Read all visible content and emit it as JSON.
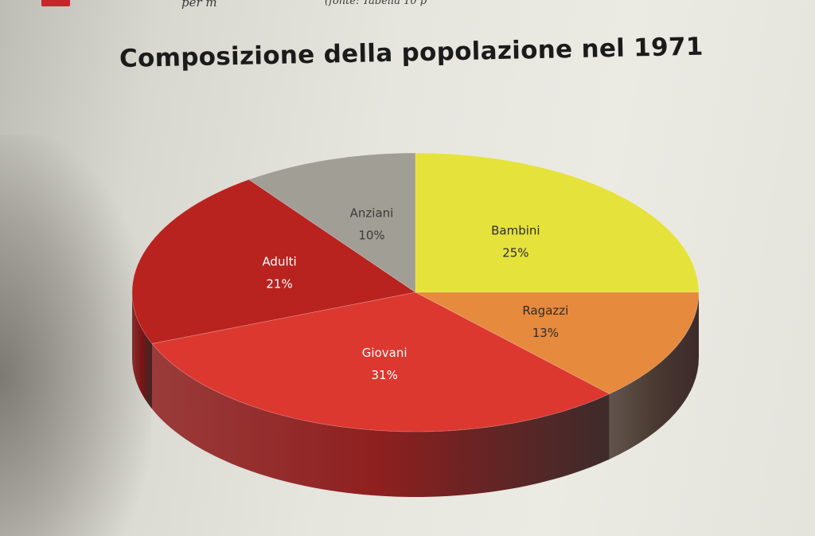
{
  "header": {
    "top_fragment_left": "per m",
    "top_fragment_right": "(fonte: Tabella 10 p"
  },
  "chart_data": {
    "type": "pie",
    "title": "Composizione della popolazione nel 1971",
    "slices": [
      {
        "label": "Bambini",
        "value": 25,
        "value_label": "25%",
        "color": "#e6e23c",
        "side_color": "#9c9a22",
        "label_color": "#2d2d2d"
      },
      {
        "label": "Ragazzi",
        "value": 13,
        "value_label": "13%",
        "color": "#e68a3e",
        "side_color": "#4a3a32",
        "label_color": "#2d2d2d"
      },
      {
        "label": "Giovani",
        "value": 31,
        "value_label": "31%",
        "color": "#dc3830",
        "side_color": "#8e1f1f",
        "label_color": "#ffffff"
      },
      {
        "label": "Adulti",
        "value": 21,
        "value_label": "21%",
        "color": "#b8221f",
        "side_color": "#7a1414",
        "label_color": "#ffffff"
      },
      {
        "label": "Anziani",
        "value": 10,
        "value_label": "10%",
        "color": "#a19e96",
        "side_color": "#6e6b64",
        "label_color": "#3a3a3a"
      }
    ],
    "start_angle_deg": -90,
    "direction": "clockwise",
    "legend": "none",
    "style": "3d"
  }
}
